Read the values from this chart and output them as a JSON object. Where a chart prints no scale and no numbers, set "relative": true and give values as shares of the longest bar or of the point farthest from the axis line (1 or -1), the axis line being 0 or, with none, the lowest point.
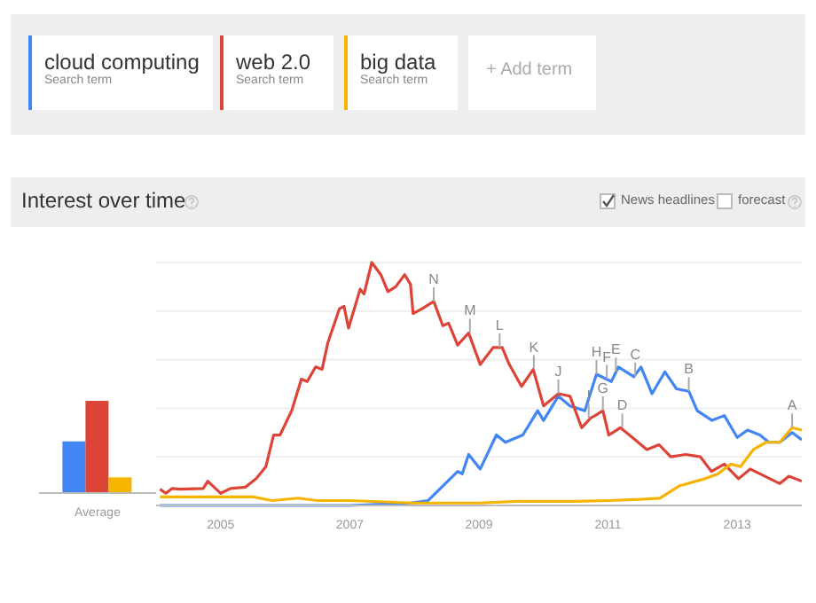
{
  "chart_data": [
    {
      "type": "bar",
      "categories": [
        "Average"
      ],
      "relative": true,
      "series": [
        {
          "color": "#4285f4",
          "values": [
            0.56
          ]
        },
        {
          "color": "#db4437",
          "values": [
            1
          ]
        },
        {
          "color": "#f4b400",
          "values": [
            0.17
          ]
        }
      ]
    },
    {
      "type": "line",
      "title": "Interest over time",
      "relative": true,
      "grid": "y",
      "legend": "top",
      "xlim": [
        2004,
        2014
      ],
      "xticks": [
        2005,
        2007,
        2009,
        2011,
        2013
      ],
      "series": [
        {
          "name": "cloud computing",
          "color": "#4285f4",
          "x": [
            2004.06,
            2005,
            2006,
            2007,
            2007.94,
            2008.21,
            2008.44,
            2008.67,
            2008.74,
            2008.84,
            2009.02,
            2009.27,
            2009.41,
            2009.68,
            2009.91,
            2010,
            2010.23,
            2010.41,
            2010.64,
            2010.82,
            2011.05,
            2011.16,
            2011.4,
            2011.51,
            2011.68,
            2011.88,
            2012.06,
            2012.25,
            2012.38,
            2012.61,
            2012.8,
            2013,
            2013.16,
            2013.35,
            2013.49,
            2013.66,
            2013.85,
            2014
          ],
          "values": [
            0,
            0,
            0,
            0,
            0.01,
            0.02,
            0.08,
            0.14,
            0.13,
            0.21,
            0.15,
            0.29,
            0.26,
            0.29,
            0.39,
            0.35,
            0.45,
            0.41,
            0.39,
            0.54,
            0.51,
            0.57,
            0.53,
            0.57,
            0.46,
            0.55,
            0.48,
            0.47,
            0.39,
            0.35,
            0.37,
            0.28,
            0.31,
            0.29,
            0.26,
            0.26,
            0.3,
            0.27
          ]
        },
        {
          "name": "web 2.0",
          "color": "#db4437",
          "x": [
            2004.06,
            2004.15,
            2004.25,
            2004.37,
            2004.73,
            2004.8,
            2005,
            2005.15,
            2005.38,
            2005.55,
            2005.7,
            2005.82,
            2005.92,
            2006.1,
            2006.25,
            2006.34,
            2006.47,
            2006.57,
            2006.66,
            2006.84,
            2006.91,
            2006.98,
            2007.16,
            2007.22,
            2007.34,
            2007.48,
            2007.59,
            2007.71,
            2007.85,
            2007.94,
            2007.98,
            2008.12,
            2008.3,
            2008.44,
            2008.53,
            2008.67,
            2008.84,
            2009.02,
            2009.22,
            2009.36,
            2009.47,
            2009.66,
            2009.84,
            2010,
            2010.23,
            2010.41,
            2010.59,
            2010.73,
            2010.8,
            2010.92,
            2011.01,
            2011.19,
            2011.42,
            2011.6,
            2011.79,
            2011.97,
            2012.2,
            2012.43,
            2012.6,
            2012.8,
            2013.02,
            2013.2,
            2013.43,
            2013.66,
            2013.8,
            2014
          ],
          "values": [
            0.067,
            0.05,
            0.07,
            0.067,
            0.07,
            0.1,
            0.05,
            0.07,
            0.075,
            0.11,
            0.16,
            0.29,
            0.29,
            0.39,
            0.52,
            0.51,
            0.57,
            0.56,
            0.67,
            0.81,
            0.82,
            0.73,
            0.89,
            0.87,
            1,
            0.95,
            0.88,
            0.9,
            0.95,
            0.91,
            0.79,
            0.81,
            0.84,
            0.74,
            0.75,
            0.66,
            0.71,
            0.58,
            0.65,
            0.65,
            0.58,
            0.49,
            0.56,
            0.41,
            0.46,
            0.45,
            0.32,
            0.36,
            0.37,
            0.39,
            0.29,
            0.32,
            0.27,
            0.23,
            0.25,
            0.2,
            0.21,
            0.2,
            0.14,
            0.17,
            0.11,
            0.15,
            0.12,
            0.09,
            0.12,
            0.1
          ]
        },
        {
          "name": "big data",
          "color": "#f4b400",
          "x": [
            2004.06,
            2005,
            2005.5,
            2005.8,
            2006.2,
            2006.5,
            2007,
            2008,
            2009,
            2009.6,
            2010.5,
            2011,
            2011.5,
            2011.8,
            2012.1,
            2012.5,
            2012.7,
            2012.9,
            2013.05,
            2013.25,
            2013.45,
            2013.66,
            2013.85,
            2014
          ],
          "values": [
            0.035,
            0.035,
            0.035,
            0.02,
            0.03,
            0.02,
            0.02,
            0.01,
            0.01,
            0.017,
            0.017,
            0.02,
            0.025,
            0.03,
            0.08,
            0.11,
            0.13,
            0.17,
            0.16,
            0.23,
            0.26,
            0.26,
            0.32,
            0.31
          ]
        }
      ],
      "annotations": [
        "Search term",
        "Search term",
        "Search term",
        "+ Add term",
        "News headlines",
        "forecast",
        {
          "text": "A",
          "x": 2013.85,
          "y": 0.32
        },
        {
          "text": "B",
          "x": 2012.25,
          "y": 0.47
        },
        {
          "text": "C",
          "x": 2011.42,
          "y": 0.53
        },
        {
          "text": "D",
          "x": 2011.22,
          "y": 0.32
        },
        {
          "text": "E",
          "x": 2011.12,
          "y": 0.55
        },
        {
          "text": "F",
          "x": 2010.98,
          "y": 0.52
        },
        {
          "text": "G",
          "x": 2010.92,
          "y": 0.39
        },
        {
          "text": "H",
          "x": 2010.82,
          "y": 0.54
        },
        {
          "text": "I",
          "x": 2010.7,
          "y": 0.36
        },
        {
          "text": "J",
          "x": 2010.23,
          "y": 0.46
        },
        {
          "text": "K",
          "x": 2009.85,
          "y": 0.56
        },
        {
          "text": "L",
          "x": 2009.32,
          "y": 0.65
        },
        {
          "text": "M",
          "x": 2008.86,
          "y": 0.71
        },
        {
          "text": "N",
          "x": 2008.3,
          "y": 0.84
        }
      ]
    }
  ]
}
